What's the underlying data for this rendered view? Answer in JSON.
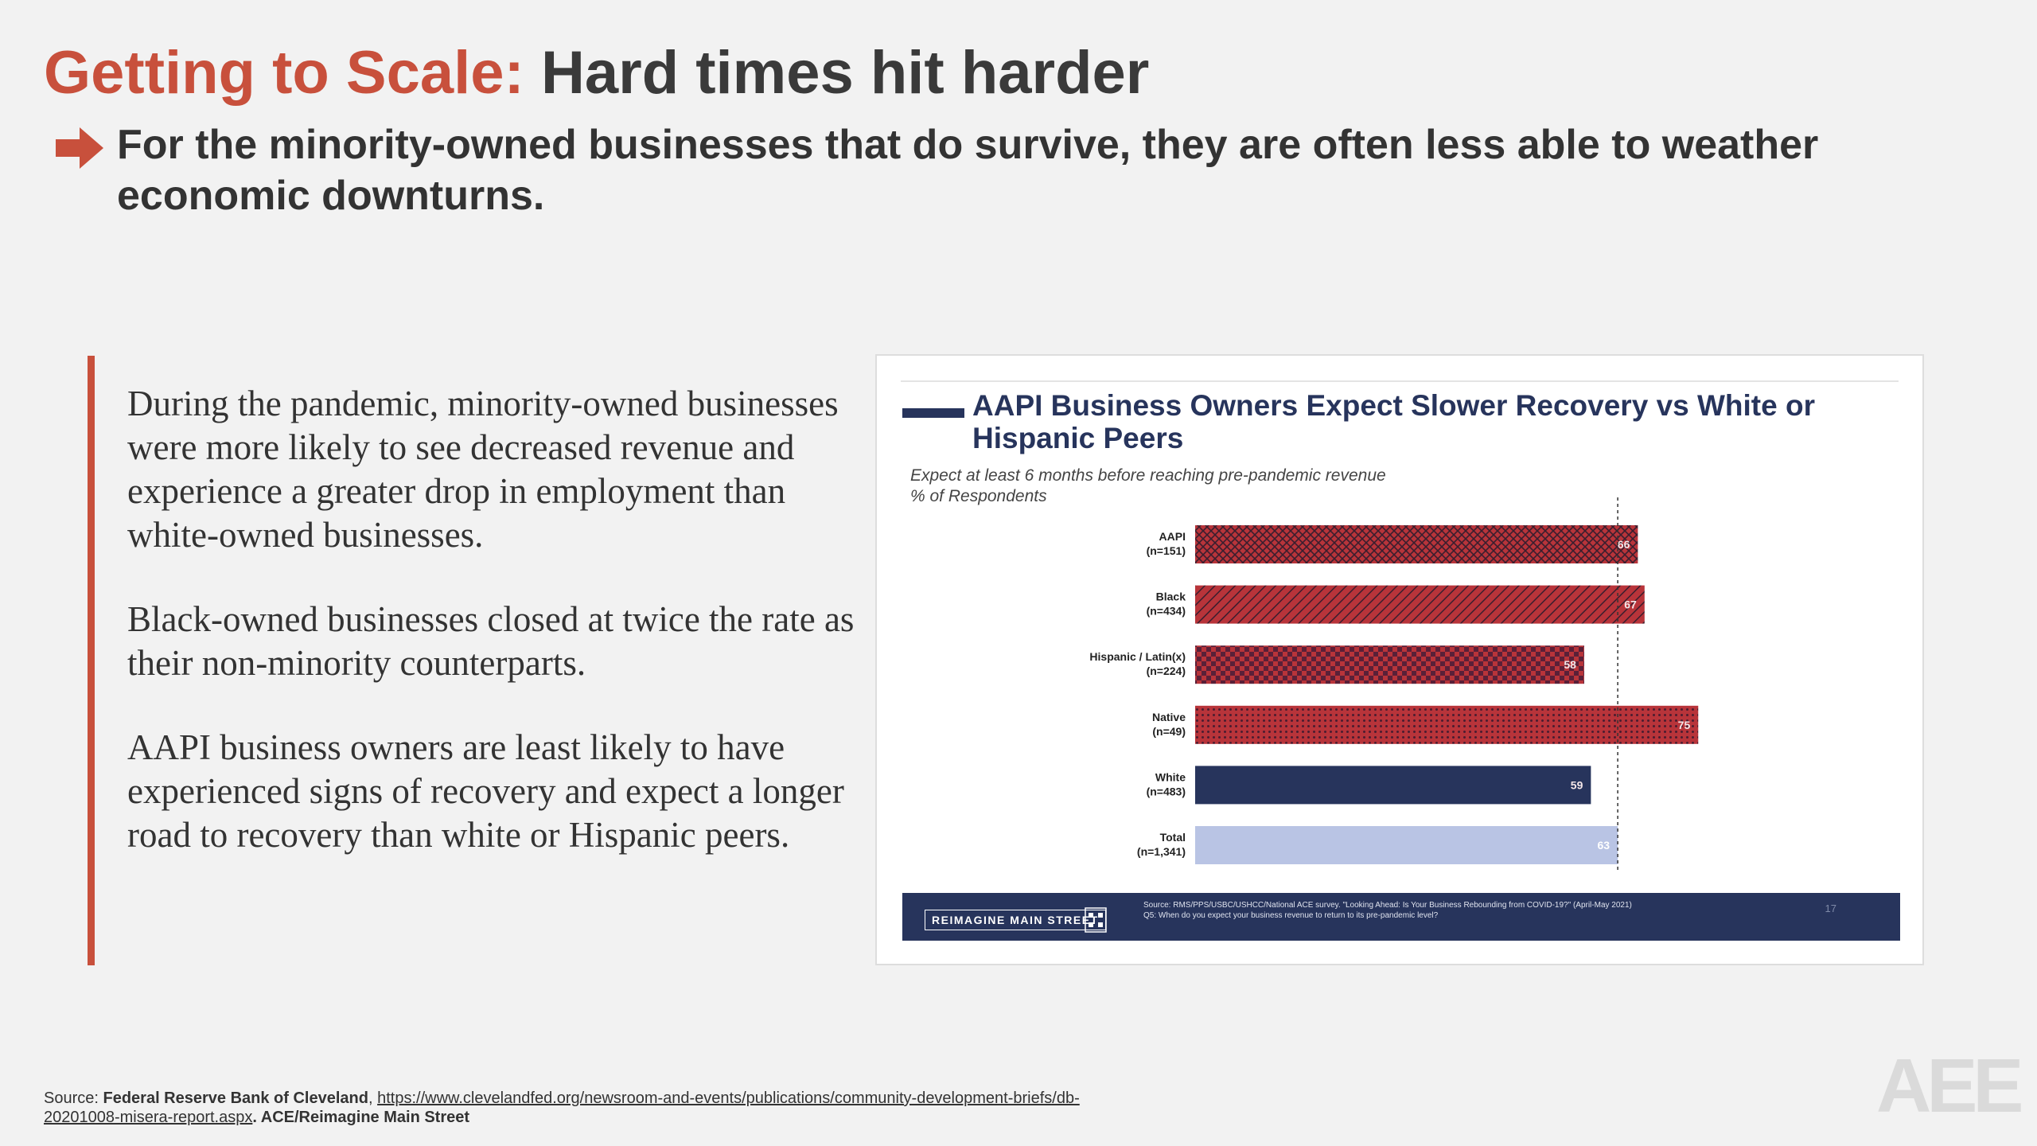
{
  "header": {
    "title_accent": "Getting to Scale:",
    "title_rest": "Hard times hit harder",
    "bullet": "For the minority-owned businesses that do survive, they are often less able to weather economic downturns."
  },
  "body": {
    "paragraphs": [
      "During the pandemic, minority-owned businesses were more likely to see decreased revenue and experience a greater drop in employment than white-owned businesses.",
      "Black-owned businesses closed at twice the rate as their non-minority counterparts.",
      "AAPI business owners are least likely to have experienced signs of recovery and expect a longer road to recovery than white or Hispanic peers."
    ]
  },
  "chart_data": {
    "type": "bar",
    "orientation": "horizontal",
    "title": "AAPI Business Owners Expect Slower Recovery vs White or Hispanic Peers",
    "subtitle": "Expect at least 6 months before reaching pre-pandemic revenue",
    "unit_label": "% of Respondents",
    "categories": [
      {
        "name": "AAPI",
        "n": "(n=151)"
      },
      {
        "name": "Black",
        "n": "(n=434)"
      },
      {
        "name": "Hispanic / Latin(x)",
        "n": "(n=224)"
      },
      {
        "name": "Native",
        "n": "(n=49)"
      },
      {
        "name": "White",
        "n": "(n=483)"
      },
      {
        "name": "Total",
        "n": "(n=1,341)"
      }
    ],
    "values": [
      66,
      67,
      58,
      75,
      59,
      63
    ],
    "reference_line": 63,
    "colors": [
      "#b8343a",
      "#b8343a",
      "#b8343a",
      "#b8343a",
      "#27345c",
      "#b9c4e4"
    ],
    "patterns": [
      "crosshatch",
      "diagonal",
      "checker",
      "dots",
      "solid",
      "solid"
    ],
    "footer": {
      "logo": "REIMAGINE MAIN STREET",
      "source_line1": "Source: RMS/PPS/USBC/USHCC/National ACE survey. \"Looking Ahead: Is Your Business Rebounding from COVID-19?\" (April-May 2021)",
      "source_line2": "Q5: When do you expect your business revenue to return to its pre-pandemic level?",
      "page": "17"
    }
  },
  "source": {
    "label": "Source: ",
    "org": "Federal Reserve Bank of Cleveland",
    "sep": ", ",
    "url": "https://www.clevelandfed.org/newsroom-and-events/publications/community-development-briefs/db-20201008-misera-report.aspx",
    "suffix": ". ACE/Reimagine Main Street"
  },
  "brand": {
    "logo": "AEE",
    "accent_color": "#c8503c",
    "navy": "#27345c"
  }
}
